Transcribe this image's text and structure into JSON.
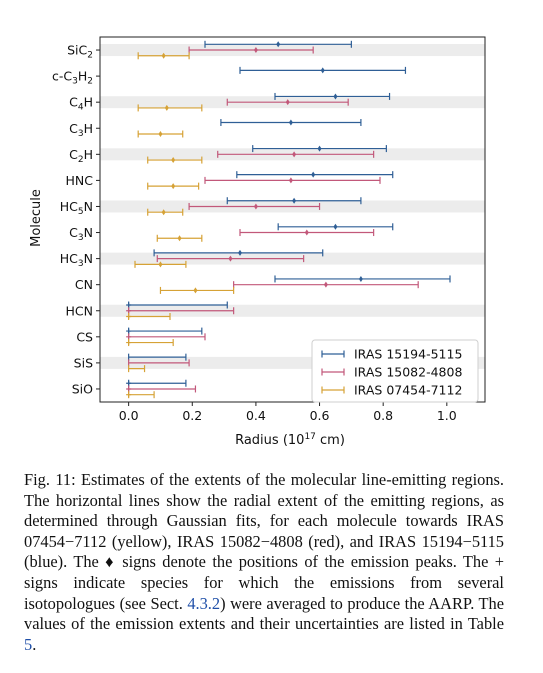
{
  "chart_data": {
    "type": "errorbar",
    "xlabel": "Radius (10",
    "xlabel_exp": "17",
    "xlabel_unit": " cm)",
    "ylabel": "Molecule",
    "xlim": [
      -0.09,
      1.12
    ],
    "xticks": [
      "0.0",
      "0.2",
      "0.4",
      "0.6",
      "0.8",
      "1.0"
    ],
    "grid_bands": true,
    "legend_position": "lower-right",
    "colors": {
      "blue": "#2f5f96",
      "red": "#c2587a",
      "yellow": "#d6a236"
    },
    "categories": [
      {
        "base": "SiC",
        "sub": "2",
        "tail": ""
      },
      {
        "base": "c-C",
        "sub": "3",
        "tail": "H",
        "sub2": "2"
      },
      {
        "base": "C",
        "sub": "4",
        "tail": "H"
      },
      {
        "base": "C",
        "sub": "3",
        "tail": "H"
      },
      {
        "base": "C",
        "sub": "2",
        "tail": "H"
      },
      {
        "base": "HNC",
        "sub": "",
        "tail": ""
      },
      {
        "base": "HC",
        "sub": "5",
        "tail": "N"
      },
      {
        "base": "C",
        "sub": "3",
        "tail": "N"
      },
      {
        "base": "HC",
        "sub": "3",
        "tail": "N"
      },
      {
        "base": "CN",
        "sub": "",
        "tail": ""
      },
      {
        "base": "HCN",
        "sub": "",
        "tail": ""
      },
      {
        "base": "CS",
        "sub": "",
        "tail": ""
      },
      {
        "base": "SiS",
        "sub": "",
        "tail": ""
      },
      {
        "base": "SiO",
        "sub": "",
        "tail": ""
      }
    ],
    "series": [
      {
        "name": "IRAS 15194-5115",
        "color": "blue",
        "offset": -0.22,
        "points": [
          {
            "cat": 0,
            "x": 0.47,
            "lo": 0.24,
            "hi": 0.7,
            "marker": "diamond"
          },
          {
            "cat": 1,
            "x": 0.61,
            "lo": 0.35,
            "hi": 0.87,
            "marker": "diamond"
          },
          {
            "cat": 2,
            "x": 0.65,
            "lo": 0.46,
            "hi": 0.82,
            "marker": "diamond"
          },
          {
            "cat": 3,
            "x": 0.51,
            "lo": 0.29,
            "hi": 0.73,
            "marker": "diamond"
          },
          {
            "cat": 4,
            "x": 0.6,
            "lo": 0.39,
            "hi": 0.81,
            "marker": "diamond"
          },
          {
            "cat": 5,
            "x": 0.58,
            "lo": 0.34,
            "hi": 0.83,
            "marker": "diamond"
          },
          {
            "cat": 6,
            "x": 0.52,
            "lo": 0.31,
            "hi": 0.73,
            "marker": "diamond"
          },
          {
            "cat": 7,
            "x": 0.65,
            "lo": 0.47,
            "hi": 0.83,
            "marker": "diamond"
          },
          {
            "cat": 8,
            "x": 0.35,
            "lo": 0.08,
            "hi": 0.61,
            "marker": "diamond"
          },
          {
            "cat": 9,
            "x": 0.73,
            "lo": 0.46,
            "hi": 1.01,
            "marker": "diamond"
          },
          {
            "cat": 10,
            "x": 0.0,
            "lo": 0.0,
            "hi": 0.31,
            "marker": "plus"
          },
          {
            "cat": 11,
            "x": 0.0,
            "lo": 0.0,
            "hi": 0.23,
            "marker": "plus"
          },
          {
            "cat": 12,
            "x": 0.0,
            "lo": 0.0,
            "hi": 0.18,
            "marker": "none"
          },
          {
            "cat": 13,
            "x": 0.0,
            "lo": 0.0,
            "hi": 0.18,
            "marker": "plus"
          }
        ]
      },
      {
        "name": "IRAS 15082-4808",
        "color": "red",
        "offset": 0.0,
        "points": [
          {
            "cat": 0,
            "x": 0.4,
            "lo": 0.19,
            "hi": 0.58,
            "marker": "diamond"
          },
          {
            "cat": 2,
            "x": 0.5,
            "lo": 0.31,
            "hi": 0.69,
            "marker": "diamond"
          },
          {
            "cat": 4,
            "x": 0.52,
            "lo": 0.28,
            "hi": 0.77,
            "marker": "diamond"
          },
          {
            "cat": 5,
            "x": 0.51,
            "lo": 0.24,
            "hi": 0.79,
            "marker": "diamond"
          },
          {
            "cat": 6,
            "x": 0.4,
            "lo": 0.19,
            "hi": 0.6,
            "marker": "diamond"
          },
          {
            "cat": 7,
            "x": 0.56,
            "lo": 0.35,
            "hi": 0.77,
            "marker": "diamond"
          },
          {
            "cat": 8,
            "x": 0.32,
            "lo": 0.09,
            "hi": 0.55,
            "marker": "diamond"
          },
          {
            "cat": 9,
            "x": 0.62,
            "lo": 0.33,
            "hi": 0.91,
            "marker": "diamond"
          },
          {
            "cat": 10,
            "x": 0.0,
            "lo": 0.0,
            "hi": 0.33,
            "marker": "plus"
          },
          {
            "cat": 11,
            "x": 0.0,
            "lo": 0.0,
            "hi": 0.24,
            "marker": "plus"
          },
          {
            "cat": 12,
            "x": 0.0,
            "lo": 0.0,
            "hi": 0.19,
            "marker": "none"
          },
          {
            "cat": 13,
            "x": 0.0,
            "lo": 0.0,
            "hi": 0.21,
            "marker": "plus"
          }
        ]
      },
      {
        "name": "IRAS 07454-7112",
        "color": "yellow",
        "offset": 0.22,
        "points": [
          {
            "cat": 0,
            "x": 0.11,
            "lo": 0.03,
            "hi": 0.19,
            "marker": "diamond"
          },
          {
            "cat": 2,
            "x": 0.12,
            "lo": 0.03,
            "hi": 0.23,
            "marker": "diamond"
          },
          {
            "cat": 3,
            "x": 0.1,
            "lo": 0.03,
            "hi": 0.17,
            "marker": "diamond"
          },
          {
            "cat": 4,
            "x": 0.14,
            "lo": 0.06,
            "hi": 0.23,
            "marker": "diamond"
          },
          {
            "cat": 5,
            "x": 0.14,
            "lo": 0.06,
            "hi": 0.22,
            "marker": "diamond"
          },
          {
            "cat": 6,
            "x": 0.11,
            "lo": 0.06,
            "hi": 0.17,
            "marker": "diamond"
          },
          {
            "cat": 7,
            "x": 0.16,
            "lo": 0.09,
            "hi": 0.23,
            "marker": "diamond"
          },
          {
            "cat": 8,
            "x": 0.1,
            "lo": 0.02,
            "hi": 0.18,
            "marker": "diamond"
          },
          {
            "cat": 9,
            "x": 0.21,
            "lo": 0.1,
            "hi": 0.33,
            "marker": "diamond"
          },
          {
            "cat": 10,
            "x": 0.0,
            "lo": 0.0,
            "hi": 0.13,
            "marker": "plus"
          },
          {
            "cat": 11,
            "x": 0.0,
            "lo": 0.0,
            "hi": 0.14,
            "marker": "plus"
          },
          {
            "cat": 12,
            "x": 0.0,
            "lo": 0.0,
            "hi": 0.05,
            "marker": "none"
          },
          {
            "cat": 13,
            "x": 0.0,
            "lo": 0.0,
            "hi": 0.08,
            "marker": "plus"
          }
        ]
      }
    ],
    "legend_order": [
      0,
      1,
      2
    ]
  },
  "caption": {
    "part1": "Fig. 11: Estimates of the extents of the molecular line-emitting regions. The horizontal lines show the radial extent of the emitting regions, as determined through Gaussian fits, for each molecule towards IRAS 07454−7112 (yellow), IRAS 15082−4808 (red), and IRAS 15194−5115 (blue). The ♦ signs denote the positions of the emission peaks. The + signs indicate species for which the emissions from several isotopologues (see Sect. ",
    "sect_link": "4.3.2",
    "part2": ") were averaged to produce the AARP. The values of the emission extents and their uncertainties are listed in Table ",
    "table_link": "5",
    "part3": "."
  }
}
